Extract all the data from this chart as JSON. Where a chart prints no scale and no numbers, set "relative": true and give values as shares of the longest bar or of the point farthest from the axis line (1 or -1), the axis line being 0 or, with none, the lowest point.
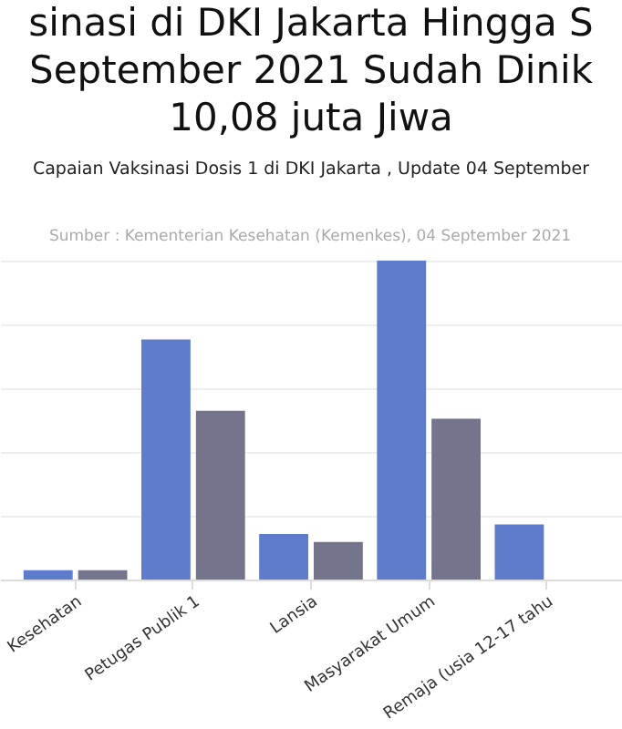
{
  "chart_data": {
    "type": "bar",
    "title": [
      "sinasi di DKI Jakarta Hingga S",
      "September 2021 Sudah Dinik",
      "10,08 juta Jiwa"
    ],
    "subtitle": "Capaian Vaksinasi Dosis 1 di DKI Jakarta , Update 04 September",
    "annotations": [
      "Sumber : Kementerian Kesehatan (Kemenkes), 04 September 2021"
    ],
    "categories": [
      "Kesehatan",
      "Petugas Publik 1",
      "Lansia",
      "Masyarakat Umum",
      "Remaja (usia 12-17 tahu"
    ],
    "relative": true,
    "grid": "y",
    "series": [
      {
        "color": "#5f7bcc",
        "values": [
          0.029,
          0.753,
          0.143,
          1,
          0.173
        ]
      },
      {
        "color": "#74748c",
        "values": [
          0.029,
          0.529,
          0.118,
          0.504,
          null
        ]
      }
    ]
  }
}
